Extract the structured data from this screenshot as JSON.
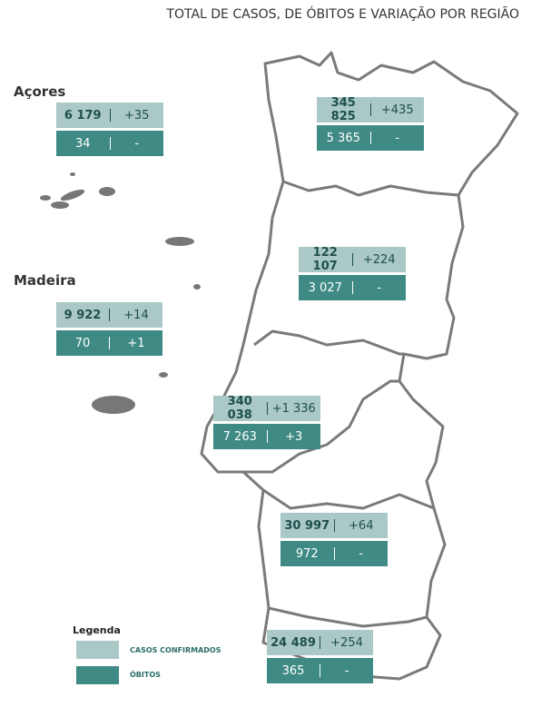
{
  "header": {
    "title": "TOTAL DE CASOS, DE ÓBITOS E VARIAÇÃO POR REGIÃO"
  },
  "regions": [
    {
      "name": "Açores",
      "cases": "6 179",
      "cases_change": "+35",
      "deaths": "34",
      "deaths_change": "-"
    },
    {
      "name": "Madeira",
      "cases": "9 922",
      "cases_change": "+14",
      "deaths": "70",
      "deaths_change": "+1"
    },
    {
      "cases": "345 825",
      "cases_change": "+435",
      "deaths": "5 365",
      "deaths_change": "-"
    },
    {
      "cases": "122 107",
      "cases_change": "+224",
      "deaths": "3 027",
      "deaths_change": "-"
    },
    {
      "cases": "340 038",
      "cases_change": "+1 336",
      "deaths": "7 263",
      "deaths_change": "+3"
    },
    {
      "cases": "30 997",
      "cases_change": "+64",
      "deaths": "972",
      "deaths_change": "-"
    },
    {
      "cases": "24 489",
      "cases_change": "+254",
      "deaths": "365",
      "deaths_change": "-"
    }
  ],
  "legend": {
    "title": "Legenda",
    "items": [
      "CASOS CONFIRMADOS",
      "ÓBITOS"
    ]
  }
}
